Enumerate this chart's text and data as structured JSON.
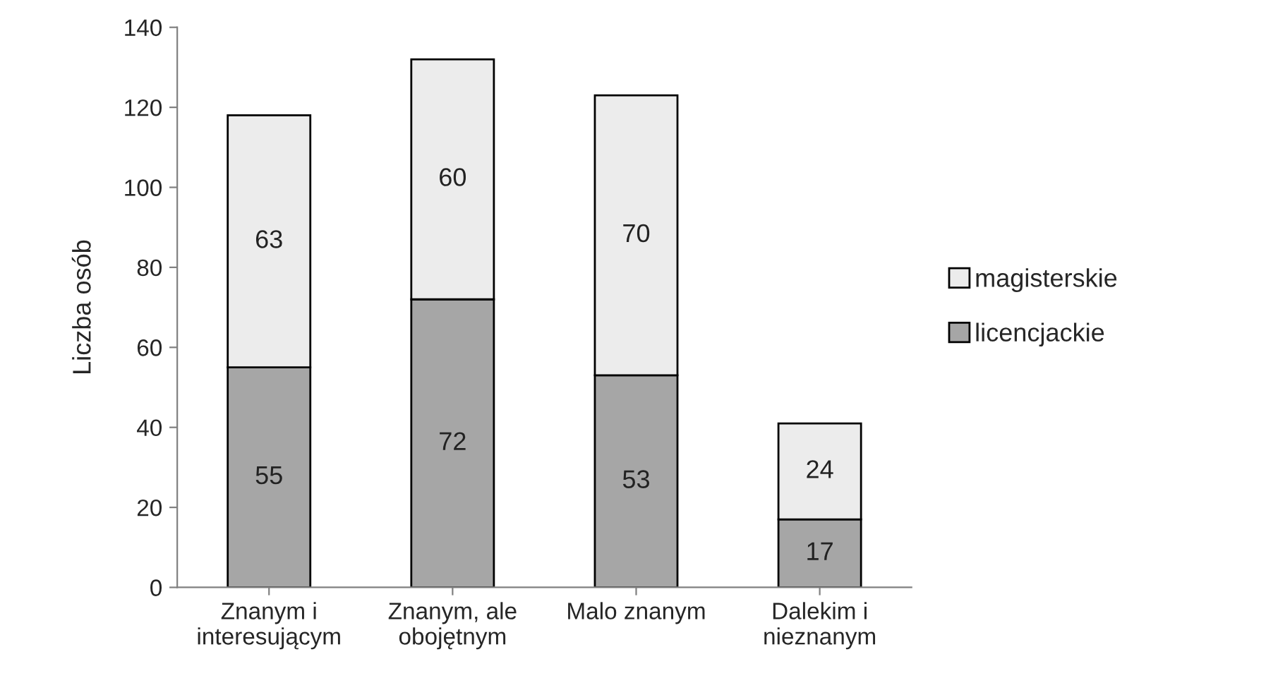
{
  "chart_data": {
    "type": "bar",
    "stacked": true,
    "ylabel": "Liczba osób",
    "categories": [
      "Znanym i\ninteresującym",
      "Znanym, ale\nobojętnym",
      "Malo znanym",
      "Dalekim i\nnieznanym"
    ],
    "series": [
      {
        "name": "licencjackie",
        "color": "#a6a6a6",
        "values": [
          55,
          72,
          53,
          17
        ]
      },
      {
        "name": "magisterskie",
        "color": "#ececec",
        "values": [
          63,
          60,
          70,
          24
        ]
      }
    ],
    "ylim": [
      0,
      140
    ],
    "yticks": [
      0,
      20,
      40,
      60,
      80,
      100,
      120,
      140
    ],
    "data_labels": true,
    "legend": "right",
    "grid": false
  }
}
